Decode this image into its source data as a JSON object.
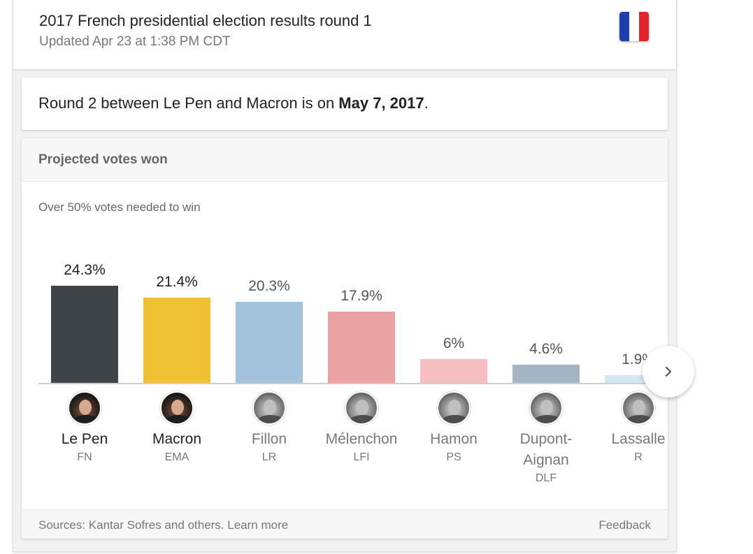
{
  "header": {
    "title": "2017 French presidential election results round 1",
    "updated": "Updated Apr 23 at 1:38 PM CDT",
    "flag_icon": "france-flag-icon",
    "flag_colors": [
      "#1f3fa8",
      "#ffffff",
      "#e1252f"
    ]
  },
  "round2": {
    "text_before": "Round 2 between Le Pen and Macron is on ",
    "date": "May 7, 2017",
    "text_after": "."
  },
  "chart_card": {
    "title": "Projected votes won",
    "threshold": "Over 50% votes needed to win",
    "sources": "Sources: Kantar Sofres and others. Learn more",
    "feedback": "Feedback",
    "next_icon": "chevron-right-icon"
  },
  "chart_data": {
    "type": "bar",
    "categories": [
      "Le Pen",
      "Macron",
      "Fillon",
      "Mélenchon",
      "Hamon",
      "Dupont-Aignan",
      "Lassalle"
    ],
    "values": [
      24.3,
      21.4,
      20.3,
      17.9,
      6,
      4.6,
      1.9
    ],
    "value_labels": [
      "24.3%",
      "21.4%",
      "20.3%",
      "17.9%",
      "6%",
      "4.6%",
      "1.9%"
    ],
    "name_lines": [
      [
        "Le Pen"
      ],
      [
        "Macron"
      ],
      [
        "Fillon"
      ],
      [
        "Mélenchon"
      ],
      [
        "Hamon"
      ],
      [
        "Dupont-",
        "Aignan"
      ],
      [
        "Lassalle"
      ]
    ],
    "parties": [
      "FN",
      "EMA",
      "LR",
      "LFI",
      "PS",
      "DLF",
      "R"
    ],
    "colors": [
      "#3f4448",
      "#f0c033",
      "#a3c3dc",
      "#eba2a4",
      "#f6bec0",
      "#a4b4c4",
      "#d3e6f3"
    ],
    "avatar_styles": [
      "color",
      "color",
      "gray",
      "gray",
      "gray",
      "gray",
      "gray"
    ],
    "ylim": [
      0,
      100
    ],
    "title": "Projected votes won",
    "xlabel": "",
    "ylabel": ""
  }
}
